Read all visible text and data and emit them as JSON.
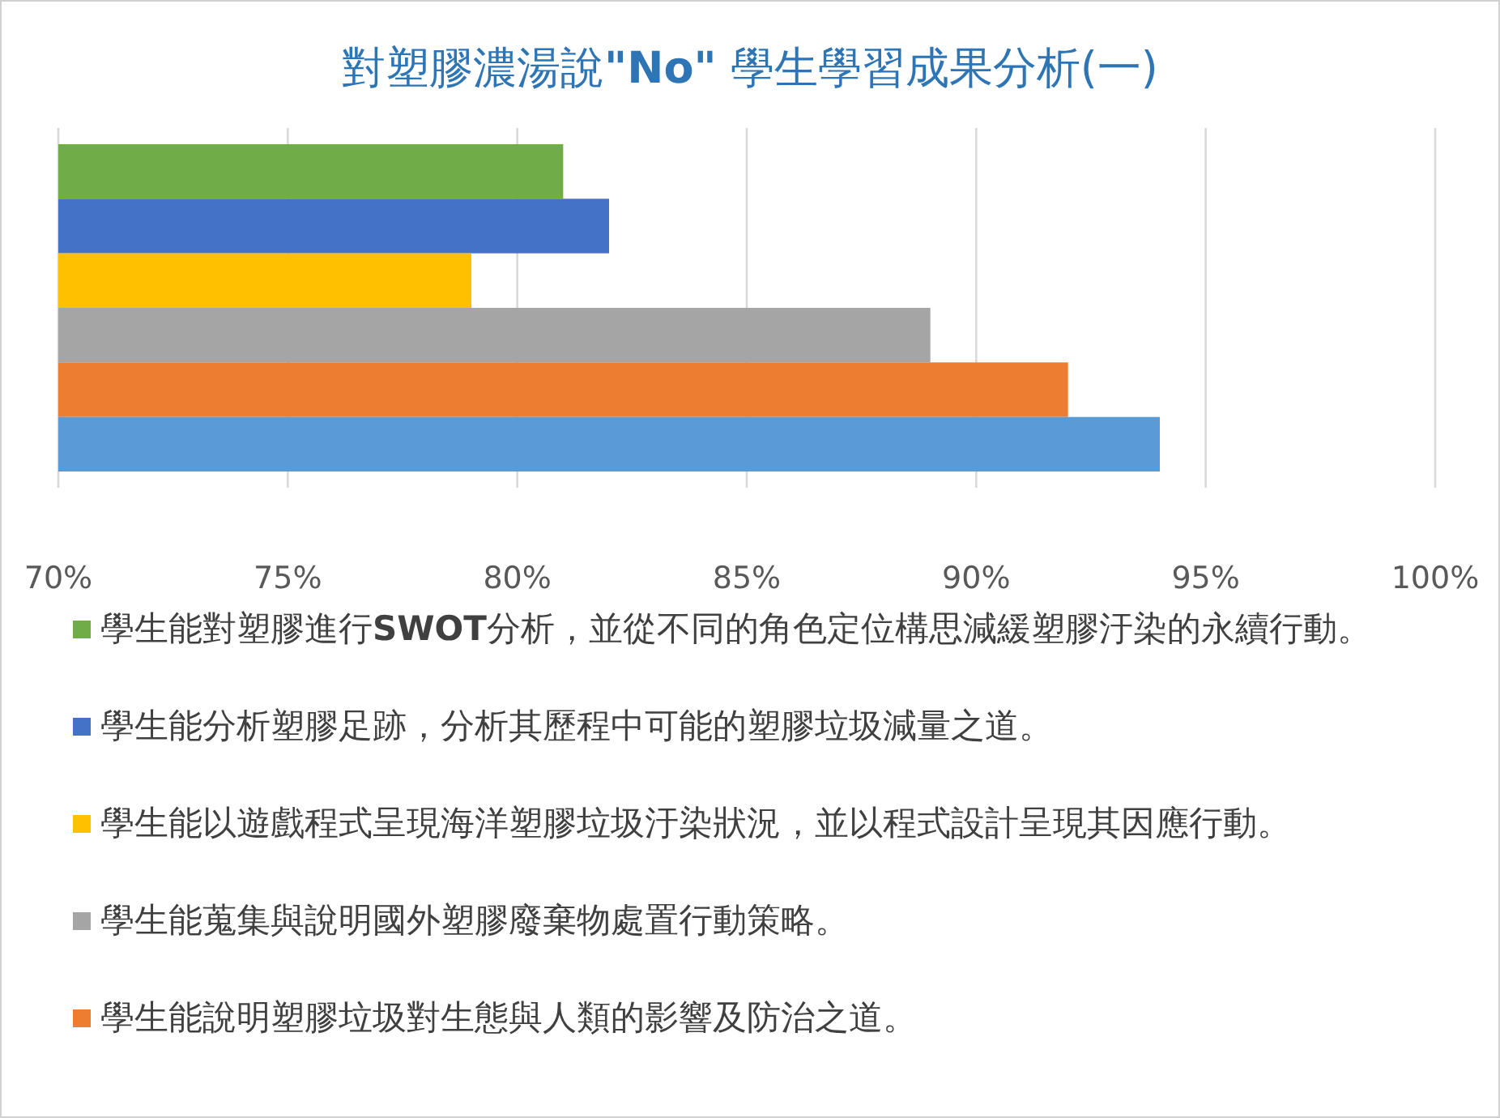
{
  "chart_data": {
    "type": "bar",
    "orientation": "horizontal",
    "title": "對塑膠濃湯說**\"No\"** 學生學習成果分析(一)",
    "categories": [
      null
    ],
    "series": [
      {
        "name": "學生能對塑膠進行**SWOT**分析，並從不同的角色定位構思減緩塑膠汙染的永續行動。",
        "color": "#70ad47",
        "values": [
          81
        ]
      },
      {
        "name": "學生能分析塑膠足跡，分析其歷程中可能的塑膠垃圾減量之道。",
        "color": "#4472c4",
        "values": [
          82
        ]
      },
      {
        "name": "學生能以遊戲程式呈現海洋塑膠垃圾汙染狀況，並以程式設計呈現其因應行動。",
        "color": "#ffc000",
        "values": [
          79
        ]
      },
      {
        "name": "學生能蒐集與說明國外塑膠廢棄物處置行動策略。",
        "color": "#a5a5a5",
        "values": [
          89
        ]
      },
      {
        "name": "學生能說明塑膠垃圾對生態與人類的影響及防治之道。",
        "color": "#ed7d31",
        "values": [
          92
        ]
      },
      {
        "color": "#5b9bd5",
        "values": [
          94
        ]
      }
    ],
    "xlim": [
      70,
      100
    ],
    "xticks": [
      {
        "value": 70,
        "label": "70%"
      },
      {
        "value": 75,
        "label": "75%"
      },
      {
        "value": 80,
        "label": "80%"
      },
      {
        "value": 85,
        "label": "85%"
      },
      {
        "value": 90,
        "label": "90%"
      },
      {
        "value": 95,
        "label": "95%"
      },
      {
        "value": 100,
        "label": "100%"
      }
    ],
    "grid": "x",
    "legend": "bottom"
  }
}
